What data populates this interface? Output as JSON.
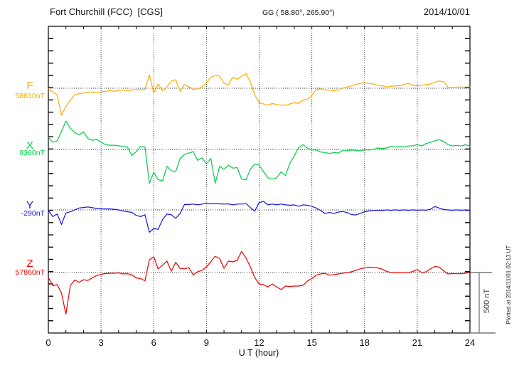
{
  "header": {
    "station_title": "Fort Churchill (FCC)  [CGS]",
    "coordinates": "GG ( 58.80°, 265.90°)",
    "date": "2014/10/01"
  },
  "chart_data": {
    "type": "line",
    "title": "Fort Churchill (FCC) magnetogram 2014/10/01",
    "xlabel": "U T (hour)",
    "x_ticks": [
      0,
      3,
      6,
      9,
      12,
      15,
      18,
      21,
      24
    ],
    "x_range_hours": [
      0,
      24
    ],
    "x_step_hour": 0.25,
    "grid": "dotted vertical every 3 h, dotted baseline per component",
    "y_tick_interval_nT": 100,
    "scale_bar": {
      "label": "500 nT",
      "nT": 500
    },
    "footer_note": "Plotted at 2014/11/01 02:13 UT",
    "series": [
      {
        "name": "F",
        "baseline_label": "58610nT",
        "baseline_nT": 58610,
        "color": "#FFAC00",
        "offsets_nT": [
          -5,
          -30,
          -55,
          -225,
          -150,
          -100,
          -55,
          -45,
          -40,
          -35,
          -30,
          -35,
          -30,
          -25,
          -20,
          -25,
          -20,
          -15,
          -20,
          -15,
          -10,
          -15,
          -10,
          110,
          -40,
          35,
          -20,
          10,
          60,
          70,
          -25,
          30,
          10,
          -10,
          -5,
          10,
          45,
          90,
          105,
          100,
          40,
          30,
          90,
          75,
          100,
          120,
          50,
          -55,
          -120,
          -130,
          -140,
          -125,
          -135,
          -140,
          -140,
          -130,
          -120,
          -125,
          -100,
          -90,
          -60,
          -10,
          -5,
          -15,
          -15,
          -20,
          -15,
          0,
          10,
          20,
          30,
          40,
          45,
          40,
          35,
          25,
          20,
          10,
          15,
          20,
          20,
          30,
          40,
          25,
          20,
          25,
          30,
          35,
          50,
          60,
          55,
          10,
          5,
          10,
          10,
          10,
          10
        ]
      },
      {
        "name": "X",
        "baseline_label": "9360nT",
        "baseline_nT": 9360,
        "color": "#00CC44",
        "offsets_nT": [
          100,
          60,
          70,
          150,
          235,
          175,
          140,
          120,
          145,
          90,
          75,
          85,
          60,
          40,
          35,
          35,
          30,
          25,
          20,
          -50,
          -20,
          25,
          20,
          -280,
          -190,
          -250,
          -260,
          -140,
          -175,
          -185,
          -75,
          -40,
          -30,
          -18,
          -90,
          -70,
          -120,
          -75,
          -280,
          -140,
          -165,
          -130,
          -155,
          -150,
          -245,
          -250,
          -165,
          -120,
          -130,
          -185,
          -235,
          -245,
          -235,
          -185,
          -215,
          -115,
          -55,
          15,
          40,
          10,
          -5,
          -5,
          -22,
          -25,
          -35,
          -25,
          -30,
          -10,
          -12,
          -5,
          -8,
          -12,
          -3,
          -5,
          0,
          12,
          8,
          12,
          25,
          20,
          25,
          20,
          28,
          30,
          40,
          28,
          48,
          58,
          72,
          82,
          65,
          40,
          28,
          33,
          28,
          38,
          28
        ]
      },
      {
        "name": "Y",
        "baseline_label": "-290nT",
        "baseline_nT": -290,
        "color": "#1414DD",
        "offsets_nT": [
          -5,
          -55,
          -35,
          -120,
          -25,
          -15,
          0,
          15,
          20,
          25,
          18,
          12,
          8,
          8,
          8,
          5,
          0,
          -8,
          -15,
          -20,
          -45,
          -55,
          -40,
          -185,
          -155,
          -160,
          -80,
          -35,
          -40,
          -70,
          -30,
          45,
          45,
          48,
          42,
          48,
          55,
          50,
          52,
          50,
          48,
          50,
          42,
          48,
          48,
          52,
          20,
          -10,
          60,
          70,
          42,
          48,
          42,
          48,
          42,
          38,
          42,
          30,
          42,
          38,
          30,
          15,
          -5,
          -30,
          -20,
          -30,
          -18,
          -13,
          -22,
          -38,
          -42,
          -30,
          -15,
          -8,
          -5,
          -3,
          -5,
          0,
          -3,
          0,
          -3,
          0,
          -3,
          0,
          -3,
          0,
          -3,
          5,
          28,
          15,
          3,
          0,
          -3,
          0,
          -3,
          0,
          -3
        ]
      },
      {
        "name": "Z",
        "baseline_label": "57860nT",
        "baseline_nT": 57860,
        "color": "#EE0000",
        "offsets_nT": [
          -40,
          -110,
          -100,
          -170,
          -345,
          -108,
          -62,
          -80,
          -60,
          -65,
          -45,
          -25,
          -15,
          -8,
          -6,
          -6,
          -3,
          -12,
          -10,
          -18,
          -45,
          -50,
          -68,
          105,
          130,
          30,
          60,
          95,
          10,
          85,
          35,
          30,
          40,
          -20,
          6,
          18,
          47,
          90,
          135,
          115,
          35,
          95,
          88,
          100,
          175,
          120,
          47,
          -41,
          -95,
          -100,
          -120,
          -95,
          -120,
          -140,
          -112,
          -115,
          -112,
          -112,
          -105,
          -70,
          -50,
          -22,
          -12,
          -6,
          -22,
          -18,
          -12,
          -6,
          0,
          6,
          18,
          30,
          38,
          45,
          41,
          38,
          28,
          10,
          0,
          -2,
          0,
          -2,
          0,
          8,
          25,
          0,
          5,
          30,
          50,
          45,
          15,
          -12,
          -8,
          -10,
          -10,
          -5,
          0
        ]
      }
    ]
  }
}
